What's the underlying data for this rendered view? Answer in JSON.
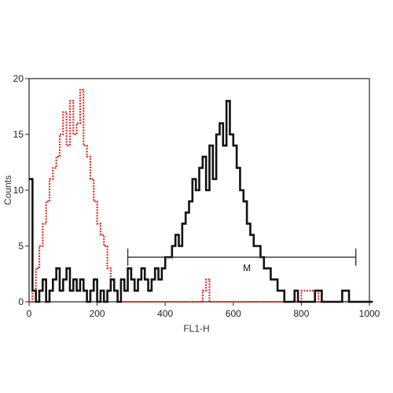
{
  "chart_data": {
    "type": "line",
    "title": "",
    "xlabel": "FL1-H",
    "ylabel": "Counts",
    "xlim": [
      0,
      1000
    ],
    "ylim": [
      0,
      20
    ],
    "x_ticks": [
      0,
      200,
      400,
      600,
      800,
      1000
    ],
    "y_ticks": [
      0,
      5,
      10,
      15,
      20
    ],
    "grid": false,
    "legend": "none",
    "series": [
      {
        "color": "#d9302a",
        "style": "dotted",
        "x": [
          0,
          10,
          20,
          30,
          40,
          50,
          60,
          70,
          80,
          90,
          100,
          110,
          120,
          130,
          140,
          150,
          160,
          170,
          180,
          190,
          200,
          210,
          220,
          230,
          240,
          250,
          260,
          280,
          300,
          350,
          400,
          450,
          500,
          510,
          520,
          530,
          540,
          600,
          650,
          700,
          750,
          800,
          850,
          900,
          950,
          1000
        ],
        "y": [
          0,
          1,
          3,
          5,
          7,
          9,
          11,
          12,
          13,
          15,
          17,
          14,
          18,
          15,
          16,
          19,
          14,
          13,
          11,
          9,
          7,
          6,
          5,
          3,
          2,
          1,
          0,
          0,
          0,
          0,
          0,
          0,
          0,
          1,
          2,
          0,
          0,
          0,
          0,
          0,
          0,
          1,
          0,
          0,
          0,
          0
        ]
      },
      {
        "color": "#111111",
        "style": "solid",
        "x": [
          0,
          10,
          20,
          30,
          40,
          50,
          60,
          70,
          80,
          90,
          100,
          110,
          120,
          130,
          140,
          150,
          160,
          170,
          180,
          190,
          200,
          210,
          220,
          230,
          240,
          250,
          260,
          270,
          280,
          290,
          300,
          310,
          320,
          330,
          340,
          350,
          360,
          370,
          380,
          390,
          400,
          410,
          420,
          430,
          440,
          450,
          460,
          470,
          480,
          490,
          500,
          510,
          520,
          530,
          540,
          550,
          560,
          570,
          580,
          590,
          600,
          610,
          620,
          630,
          640,
          650,
          660,
          670,
          680,
          690,
          700,
          710,
          720,
          730,
          740,
          750,
          760,
          770,
          780,
          790,
          800,
          820,
          840,
          860,
          880,
          900,
          920,
          940,
          960,
          980,
          1000
        ],
        "y": [
          11,
          1,
          0,
          1,
          2,
          0,
          1,
          2,
          3,
          1,
          2,
          3,
          1,
          2,
          1,
          2,
          1,
          0,
          1,
          2,
          0,
          1,
          0,
          1,
          2,
          1,
          0,
          2,
          1,
          3,
          2,
          1,
          2,
          3,
          2,
          1,
          2,
          3,
          2,
          3,
          4,
          4,
          5,
          6,
          5,
          7,
          8,
          9,
          11,
          10,
          12,
          13,
          10,
          14,
          11,
          15,
          16,
          14,
          18,
          15,
          14,
          12,
          10,
          9,
          7,
          6,
          5,
          5,
          4,
          3,
          3,
          2,
          2,
          1,
          1,
          0,
          0,
          0,
          1,
          0,
          0,
          0,
          1,
          0,
          0,
          0,
          1,
          0,
          0,
          0,
          0
        ]
      }
    ],
    "marker": {
      "label": "M",
      "x_start": 290,
      "x_end": 960,
      "y": 4
    }
  }
}
